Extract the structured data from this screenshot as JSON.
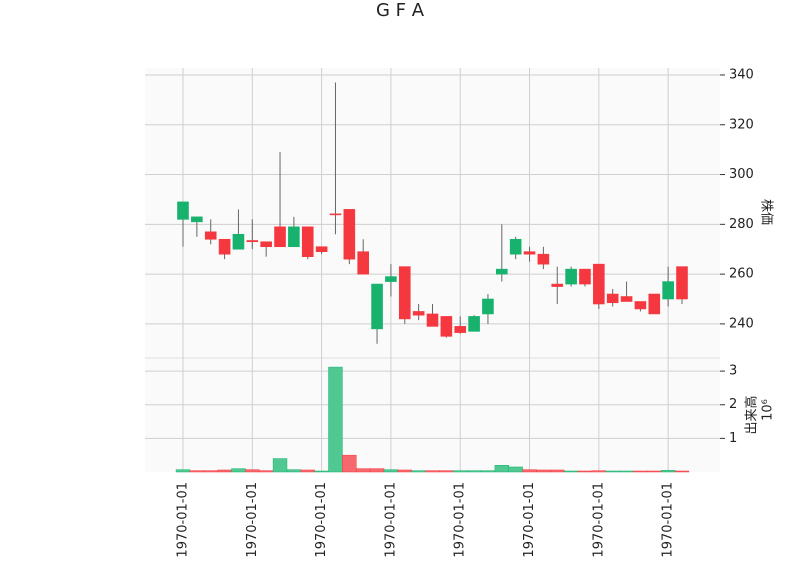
{
  "chart_data": {
    "type": "candlestick",
    "title": "G F A",
    "price_label": "株価",
    "volume_label": "出来高",
    "volume_scale_label": "10⁶",
    "categories": [
      "1970-01-01",
      null,
      null,
      null,
      null,
      "1970-01-01",
      null,
      null,
      null,
      null,
      "1970-01-01",
      null,
      null,
      null,
      null,
      "1970-01-01",
      null,
      null,
      null,
      null,
      "1970-01-01",
      null,
      null,
      null,
      null,
      "1970-01-01",
      null,
      null,
      null,
      null,
      "1970-01-01",
      null,
      null,
      null,
      null,
      "1970-01-01",
      null
    ],
    "open": [
      282,
      281,
      277,
      274,
      270,
      273.5,
      273,
      279,
      271,
      279,
      271,
      284.2,
      286,
      269,
      238,
      257,
      263,
      245,
      244,
      243,
      239,
      237,
      244,
      260,
      268,
      269,
      268,
      256,
      256,
      262,
      264,
      252,
      251,
      249,
      252,
      250,
      263
    ],
    "high": [
      289,
      283,
      282,
      274,
      286,
      282,
      273,
      309,
      283,
      279,
      271,
      337,
      286,
      274,
      256,
      264,
      263,
      248,
      248,
      243,
      243,
      243.5,
      252,
      280,
      275,
      271,
      271,
      263,
      263,
      262,
      264,
      254,
      257,
      249,
      252,
      263,
      263
    ],
    "low": [
      271,
      275,
      272,
      266,
      270,
      270,
      267,
      271,
      271,
      266,
      268,
      276,
      264,
      260,
      232,
      251,
      240,
      241.5,
      239,
      234.5,
      236,
      237,
      240,
      257,
      266,
      265,
      262,
      248,
      255,
      255,
      246,
      247,
      249,
      245,
      244,
      247,
      248
    ],
    "close": [
      289,
      283,
      274,
      268,
      276,
      273,
      271,
      271,
      279,
      267,
      269,
      284,
      266,
      260,
      256,
      259,
      242,
      243.5,
      239,
      235,
      236.5,
      243,
      250,
      262,
      274,
      268,
      264,
      255,
      262,
      256,
      248,
      248.5,
      249,
      246,
      244,
      257,
      250
    ],
    "volume": [
      0.07,
      0.04,
      0.04,
      0.06,
      0.1,
      0.07,
      0.04,
      0.4,
      0.07,
      0.06,
      0.03,
      3.12,
      0.5,
      0.1,
      0.1,
      0.07,
      0.06,
      0.04,
      0.04,
      0.04,
      0.04,
      0.04,
      0.04,
      0.2,
      0.15,
      0.07,
      0.06,
      0.06,
      0.03,
      0.03,
      0.04,
      0.03,
      0.03,
      0.03,
      0.03,
      0.05,
      0.03
    ],
    "up_color": "#17b26e",
    "down_color": "#f5383f",
    "up_volume_color": "#4fc892",
    "down_volume_color": "#f6686d",
    "ylim": [
      226.3,
      342.8
    ],
    "yticks": [
      240,
      260,
      280,
      300,
      320,
      340
    ],
    "volume_ylim": [
      0,
      3.39
    ],
    "volume_yticks": [
      1,
      2,
      3
    ],
    "grid": true
  }
}
